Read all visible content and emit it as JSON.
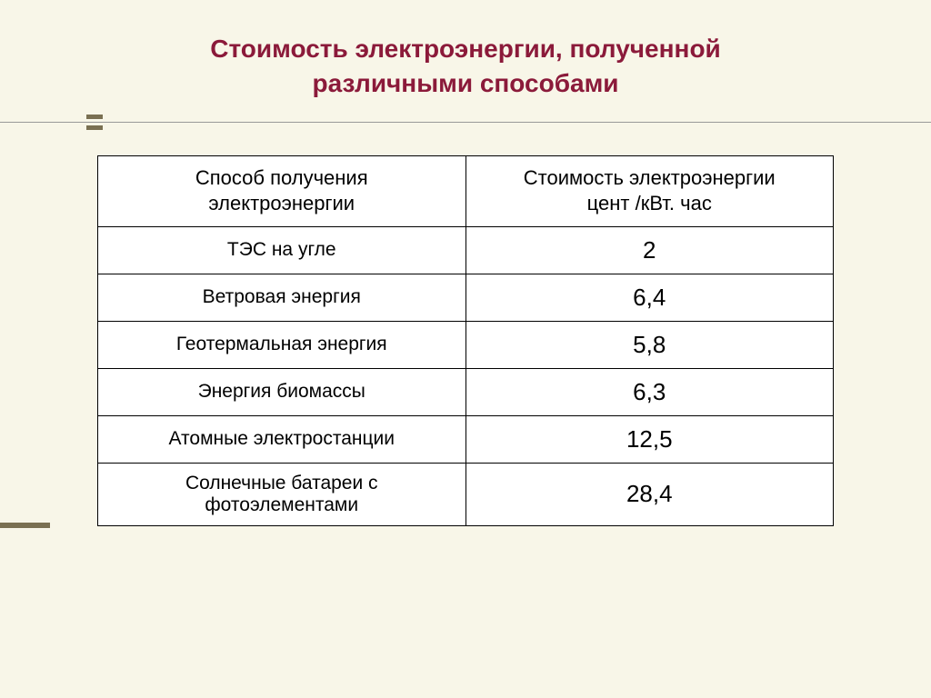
{
  "slide": {
    "title_line1": "Стоимость электроэнергии, полученной",
    "title_line2": "различными способами",
    "background_color": "#f8f6e8",
    "title_color": "#8b1a3a",
    "accent_color": "#7a7052"
  },
  "table": {
    "type": "table",
    "border_color": "#000000",
    "cell_background": "#ffffff",
    "columns": [
      "Способ получения электроэнергии",
      "Стоимость электроэнергии цент /кВт. час"
    ],
    "header_col1_line1": "Способ получения",
    "header_col1_line2": "электроэнергии",
    "header_col2_line1": "Стоимость электроэнергии",
    "header_col2_line2": "цент /кВт. час",
    "rows": [
      {
        "method": "ТЭС на угле",
        "cost": "2"
      },
      {
        "method": "Ветровая энергия",
        "cost": "6,4"
      },
      {
        "method": "Геотермальная энергия",
        "cost": "5,8"
      },
      {
        "method": "Энергия биомассы",
        "cost": "6,3"
      },
      {
        "method": "Атомные электростанции",
        "cost": "12,5"
      },
      {
        "method": "Солнечные батареи с фотоэлементами",
        "cost": "28,4"
      }
    ],
    "row0_method_line1": "ТЭС на угле",
    "row5_method_line1": "Солнечные батареи с",
    "row5_method_line2": "фотоэлементами",
    "font_size_header": 22,
    "font_size_method": 21,
    "font_size_cost": 26
  }
}
